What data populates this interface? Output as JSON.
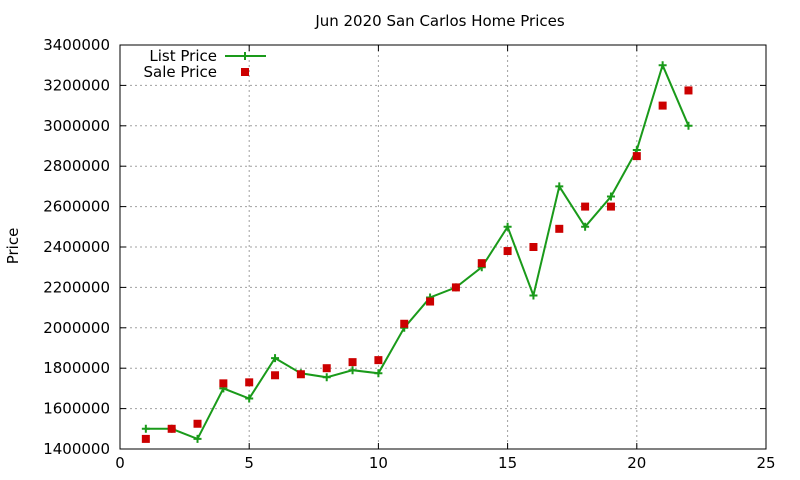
{
  "chart_data": {
    "type": "line",
    "title": "Jun 2020 San Carlos Home Prices",
    "xlabel": "",
    "ylabel": "Price",
    "xlim": [
      0,
      25
    ],
    "ylim": [
      1400000,
      3400000
    ],
    "x_ticks": [
      "0",
      "5",
      "10",
      "15",
      "20",
      "25"
    ],
    "y_ticks": [
      "1400000",
      "1600000",
      "1800000",
      "2000000",
      "2200000",
      "2400000",
      "2600000",
      "2800000",
      "3000000",
      "3200000",
      "3400000"
    ],
    "grid": true,
    "legend_position": "top-left",
    "series": [
      {
        "name": "List Price",
        "style": "line-with-plus-markers",
        "color": "#1a9a1a",
        "x": [
          1,
          2,
          3,
          4,
          5,
          6,
          7,
          8,
          9,
          10,
          11,
          12,
          13,
          14,
          15,
          16,
          17,
          18,
          19,
          20,
          21,
          22
        ],
        "y": [
          1500000,
          1500000,
          1450000,
          1700000,
          1650000,
          1850000,
          1775000,
          1755000,
          1790000,
          1775000,
          2000000,
          2150000,
          2200000,
          2300000,
          2500000,
          2160000,
          2700000,
          2500000,
          2650000,
          2880000,
          3300000,
          3000000
        ]
      },
      {
        "name": "Sale Price",
        "style": "square-markers",
        "color": "#cc0000",
        "x": [
          1,
          2,
          3,
          4,
          5,
          6,
          7,
          8,
          9,
          10,
          11,
          12,
          13,
          14,
          15,
          16,
          17,
          18,
          19,
          20,
          21,
          22
        ],
        "y": [
          1450000,
          1500000,
          1525000,
          1725000,
          1730000,
          1765000,
          1770000,
          1800000,
          1830000,
          1840000,
          2020000,
          2130000,
          2200000,
          2320000,
          2380000,
          2400000,
          2490000,
          2600000,
          2600000,
          2850000,
          3100000,
          3175000
        ]
      }
    ]
  }
}
